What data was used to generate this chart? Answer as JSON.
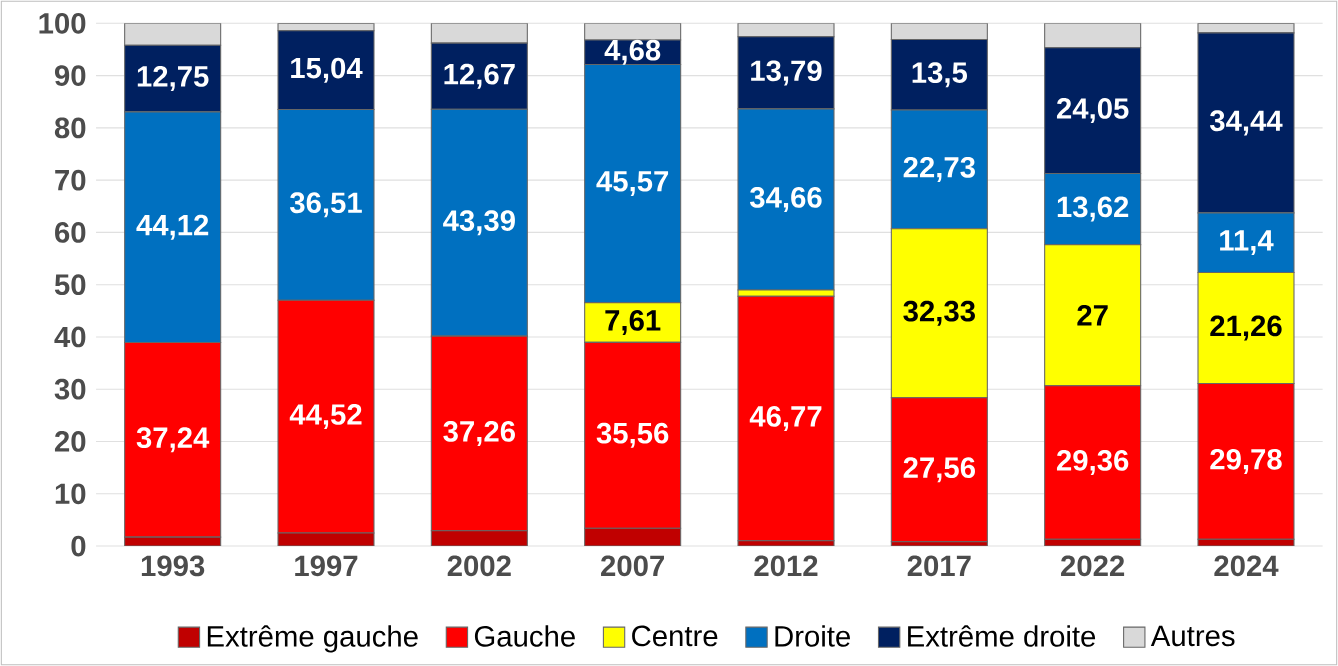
{
  "chart_data": {
    "type": "bar",
    "stacked": true,
    "categories": [
      "1993",
      "1997",
      "2002",
      "2007",
      "2012",
      "2017",
      "2022",
      "2024"
    ],
    "series": [
      {
        "name": "Extrême gauche",
        "color": "#c00000",
        "values": [
          1.7,
          2.5,
          2.9,
          3.4,
          1.0,
          0.8,
          1.3,
          1.3
        ]
      },
      {
        "name": "Gauche",
        "color": "#ff0000",
        "values": [
          37.24,
          44.52,
          37.26,
          35.56,
          46.77,
          27.56,
          29.36,
          29.78
        ],
        "value_labels": [
          "37,24",
          "44,52",
          "37,26",
          "35,56",
          "46,77",
          "27,56",
          "29,36",
          "29,78"
        ]
      },
      {
        "name": "Centre",
        "color": "#ffff00",
        "values": [
          0,
          0,
          0,
          7.61,
          1.2,
          32.33,
          27,
          21.26
        ],
        "value_labels": [
          null,
          null,
          null,
          "7,61",
          null,
          "32,33",
          "27",
          "21,26"
        ]
      },
      {
        "name": "Droite",
        "color": "#0070c0",
        "values": [
          44.12,
          36.51,
          43.39,
          45.57,
          34.66,
          22.73,
          13.62,
          11.4
        ],
        "value_labels": [
          "44,12",
          "36,51",
          "43,39",
          "45,57",
          "34,66",
          "22,73",
          "13,62",
          "11,4"
        ]
      },
      {
        "name": "Extrême droite",
        "color": "#002060",
        "values": [
          12.75,
          15.04,
          12.67,
          4.68,
          13.79,
          13.5,
          24.05,
          34.44
        ],
        "value_labels": [
          "12,75",
          "15,04",
          "12,67",
          "4,68",
          "13,79",
          "13,5",
          "24,05",
          "34,44"
        ]
      },
      {
        "name": "Autres",
        "color": "#d9d9d9",
        "values": [
          4.2,
          1.4,
          3.8,
          3.2,
          2.6,
          3.1,
          4.7,
          1.8
        ]
      }
    ],
    "ylim": [
      0,
      100
    ],
    "yticks": [
      0,
      10,
      20,
      30,
      40,
      50,
      60,
      70,
      80,
      90,
      100
    ],
    "grid": "y",
    "legend": "bottom"
  }
}
